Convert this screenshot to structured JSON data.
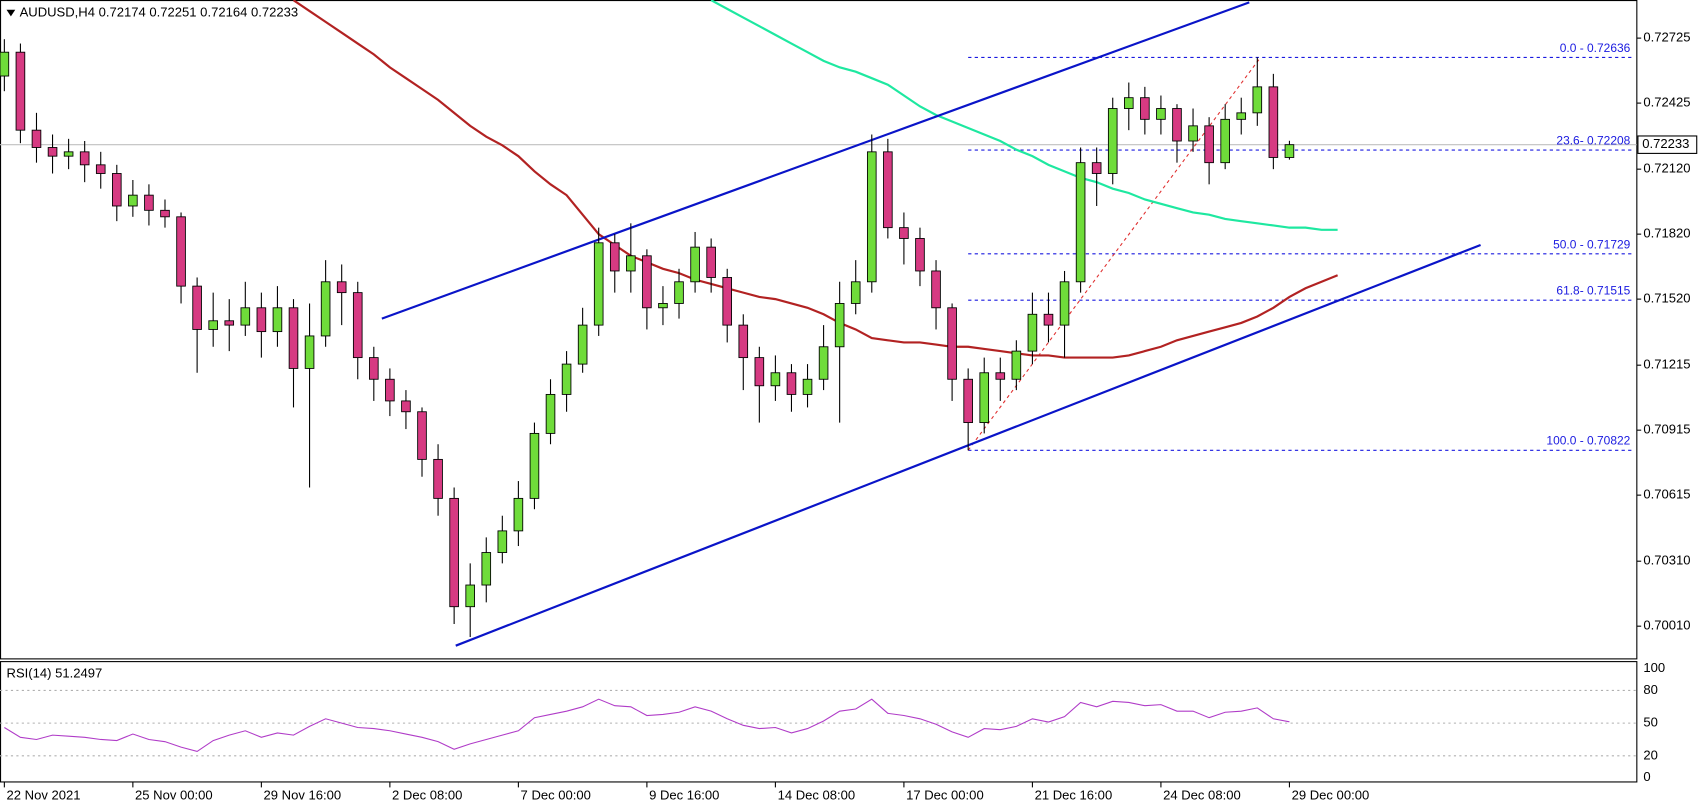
{
  "chart_data": [
    {
      "type": "candlestick",
      "title": "AUDUSD,H4  0.72174 0.72251 0.72164 0.72233",
      "categories": [
        "22 Nov 2021",
        null,
        null,
        null,
        null,
        null,
        null,
        null,
        "25 Nov 00:00",
        null,
        null,
        null,
        null,
        null,
        null,
        null,
        "29 Nov 16:00",
        null,
        null,
        null,
        null,
        null,
        null,
        null,
        "2 Dec 08:00",
        null,
        null,
        null,
        null,
        null,
        null,
        null,
        "7 Dec 00:00",
        null,
        null,
        null,
        null,
        null,
        null,
        null,
        "9 Dec 16:00",
        null,
        null,
        null,
        null,
        null,
        null,
        null,
        "14 Dec 08:00",
        null,
        null,
        null,
        null,
        null,
        null,
        null,
        "17 Dec 00:00",
        null,
        null,
        null,
        null,
        null,
        null,
        null,
        "21 Dec 16:00",
        null,
        null,
        null,
        null,
        null,
        null,
        null,
        "24 Dec 08:00",
        null,
        null,
        null,
        null,
        null,
        null,
        null,
        "29 Dec 00:00",
        null,
        null,
        null
      ],
      "open": [
        0.7255,
        0.7266,
        0.723,
        0.7222,
        0.7218,
        0.722,
        0.7214,
        0.721,
        0.7195,
        0.72,
        0.7193,
        0.719,
        0.7158,
        0.7138,
        0.7142,
        0.714,
        0.7148,
        0.7137,
        0.7148,
        0.712,
        0.7135,
        0.716,
        0.7155,
        0.7125,
        0.7115,
        0.7105,
        0.71,
        0.7078,
        0.706,
        0.701,
        0.702,
        0.7035,
        0.7045,
        0.706,
        0.709,
        0.7108,
        0.7122,
        0.714,
        0.7178,
        0.7165,
        0.7172,
        0.7148,
        0.715,
        0.716,
        0.7176,
        0.7162,
        0.714,
        0.7125,
        0.7112,
        0.7118,
        0.7108,
        0.7115,
        0.713,
        0.715,
        0.716,
        0.722,
        0.7185,
        0.718,
        0.7165,
        0.7148,
        0.7115,
        0.7095,
        0.7118,
        0.7115,
        0.7128,
        0.7145,
        0.714,
        0.716,
        0.7215,
        0.721,
        0.724,
        0.7245,
        0.7235,
        0.724,
        0.7225,
        0.7232,
        0.7215,
        0.7235,
        0.7238,
        0.725,
        0.72174,
        null,
        null,
        null
      ],
      "high": [
        0.7272,
        0.727,
        0.7238,
        0.7228,
        0.7226,
        0.7225,
        0.722,
        0.7214,
        0.7207,
        0.7205,
        0.7198,
        0.7192,
        0.7162,
        0.7155,
        0.7152,
        0.716,
        0.7155,
        0.7158,
        0.7152,
        0.715,
        0.717,
        0.7168,
        0.716,
        0.713,
        0.712,
        0.711,
        0.7102,
        0.7085,
        0.7065,
        0.703,
        0.7042,
        0.7052,
        0.7068,
        0.7095,
        0.7115,
        0.7128,
        0.7148,
        0.7185,
        0.7182,
        0.7187,
        0.7175,
        0.7158,
        0.7166,
        0.7183,
        0.718,
        0.7166,
        0.7145,
        0.713,
        0.7126,
        0.7122,
        0.7122,
        0.714,
        0.716,
        0.717,
        0.7228,
        0.7226,
        0.7192,
        0.7185,
        0.717,
        0.715,
        0.712,
        0.7125,
        0.7125,
        0.7133,
        0.7155,
        0.7155,
        0.7165,
        0.7222,
        0.7222,
        0.7245,
        0.7252,
        0.725,
        0.7246,
        0.7242,
        0.724,
        0.7236,
        0.7242,
        0.7245,
        0.72636,
        0.7256,
        0.72251,
        null,
        null,
        null
      ],
      "low": [
        0.7248,
        0.7224,
        0.7215,
        0.721,
        0.7212,
        0.7206,
        0.7203,
        0.7188,
        0.719,
        0.7186,
        0.7185,
        0.715,
        0.7118,
        0.713,
        0.7128,
        0.7135,
        0.7125,
        0.713,
        0.7102,
        0.7065,
        0.713,
        0.714,
        0.7115,
        0.7105,
        0.7098,
        0.7092,
        0.707,
        0.7052,
        0.7002,
        0.6996,
        0.7012,
        0.703,
        0.7038,
        0.7055,
        0.7085,
        0.71,
        0.7118,
        0.7135,
        0.7155,
        0.7155,
        0.7138,
        0.714,
        0.7143,
        0.7155,
        0.7155,
        0.7132,
        0.711,
        0.7095,
        0.7105,
        0.71,
        0.7102,
        0.711,
        0.7095,
        0.7145,
        0.7155,
        0.718,
        0.7168,
        0.7158,
        0.7138,
        0.7105,
        0.70822,
        0.709,
        0.7105,
        0.711,
        0.7122,
        0.7132,
        0.7125,
        0.7155,
        0.7195,
        0.7205,
        0.723,
        0.7228,
        0.7228,
        0.7215,
        0.722,
        0.7205,
        0.7212,
        0.7228,
        0.7232,
        0.7212,
        0.72164,
        null,
        null,
        null
      ],
      "close": [
        0.7266,
        0.723,
        0.7222,
        0.7218,
        0.722,
        0.7214,
        0.721,
        0.7195,
        0.72,
        0.7193,
        0.719,
        0.7158,
        0.7138,
        0.7142,
        0.714,
        0.7148,
        0.7137,
        0.7148,
        0.712,
        0.7135,
        0.716,
        0.7155,
        0.7125,
        0.7115,
        0.7105,
        0.71,
        0.7078,
        0.706,
        0.701,
        0.702,
        0.7035,
        0.7045,
        0.706,
        0.709,
        0.7108,
        0.7122,
        0.714,
        0.7178,
        0.7165,
        0.7172,
        0.7148,
        0.715,
        0.716,
        0.7176,
        0.7162,
        0.714,
        0.7125,
        0.7112,
        0.7118,
        0.7108,
        0.7115,
        0.713,
        0.715,
        0.716,
        0.722,
        0.7185,
        0.718,
        0.7165,
        0.7148,
        0.7115,
        0.7095,
        0.7118,
        0.7115,
        0.7128,
        0.7145,
        0.714,
        0.716,
        0.7215,
        0.721,
        0.724,
        0.7245,
        0.7235,
        0.724,
        0.7225,
        0.7232,
        0.7215,
        0.7235,
        0.7238,
        0.725,
        0.72174,
        0.72233,
        null,
        null,
        null
      ],
      "colors": {
        "up": "#6fdc3a",
        "down": "#d63a82",
        "outline": "#000000"
      },
      "moving_averages": [
        {
          "color": "#b22222",
          "values": [
            null,
            null,
            null,
            null,
            null,
            null,
            null,
            null,
            null,
            null,
            null,
            null,
            null,
            null,
            null,
            null,
            null,
            null,
            0.729,
            0.7285,
            0.728,
            0.7275,
            0.727,
            0.7265,
            0.7259,
            0.7254,
            0.7249,
            0.7244,
            0.7238,
            0.7232,
            0.7227,
            0.7223,
            0.7218,
            0.7211,
            0.7205,
            0.72,
            0.7191,
            0.7182,
            0.7177,
            0.7172,
            0.7169,
            0.7166,
            0.7164,
            0.7161,
            0.7159,
            0.7157,
            0.7155,
            0.7153,
            0.7152,
            0.715,
            0.7148,
            0.7145,
            0.7141,
            0.7138,
            0.7134,
            0.7133,
            0.7132,
            0.7132,
            0.7131,
            0.713,
            0.713,
            0.7129,
            0.7128,
            0.7127,
            0.7126,
            0.7126,
            0.7125,
            0.7125,
            0.7125,
            0.7125,
            0.7126,
            0.7128,
            0.713,
            0.7133,
            0.7135,
            0.7137,
            0.7139,
            0.7141,
            0.7144,
            0.7148,
            0.7153,
            0.7157,
            0.716,
            0.7163
          ]
        },
        {
          "color": "#1ee8a0",
          "values": [
            null,
            null,
            null,
            null,
            null,
            null,
            null,
            null,
            null,
            null,
            null,
            null,
            null,
            null,
            null,
            null,
            null,
            null,
            null,
            null,
            null,
            null,
            null,
            null,
            null,
            null,
            null,
            null,
            null,
            null,
            null,
            null,
            null,
            null,
            null,
            null,
            null,
            null,
            null,
            null,
            null,
            null,
            null,
            null,
            0.729,
            0.7286,
            0.7282,
            0.7278,
            0.7274,
            0.727,
            0.7266,
            0.7262,
            0.7259,
            0.7257,
            0.7254,
            0.7251,
            0.7246,
            0.7241,
            0.7237,
            0.7234,
            0.7231,
            0.7228,
            0.7225,
            0.7221,
            0.7218,
            0.7214,
            0.7211,
            0.7208,
            0.7206,
            0.7203,
            0.7201,
            0.7198,
            0.7196,
            0.7194,
            0.7192,
            0.7191,
            0.7189,
            0.7188,
            0.7187,
            0.7186,
            0.7185,
            0.7185,
            0.7184,
            0.7184
          ]
        }
      ],
      "trendlines": [
        {
          "color": "#0a14c8",
          "x": [
            23.5,
            77.5
          ],
          "y": [
            0.7143,
            0.7289
          ]
        },
        {
          "color": "#0a14c8",
          "x": [
            28.1,
            91.9
          ],
          "y": [
            0.6992,
            0.7177
          ]
        }
      ],
      "fib_levels": [
        {
          "value": 0.72636,
          "label": "0.0 - 0.72636"
        },
        {
          "value": 0.72208,
          "label": "23.6- 0.72208"
        },
        {
          "value": 0.71729,
          "label": "50.0 - 0.71729"
        },
        {
          "value": 0.71515,
          "label": "61.8- 0.71515"
        },
        {
          "value": 0.70822,
          "label": "100.0 - 0.70822"
        }
      ],
      "fib_color": "#1a1ae0",
      "last_price": 0.72233,
      "ylim": [
        0.69859,
        0.72901
      ],
      "yticks": [
        0.72725,
        0.72425,
        {
          "value": 0.7212,
          "label": "0.72120"
        },
        {
          "value": 0.7182,
          "label": "0.71820"
        },
        {
          "value": 0.7152,
          "label": "0.71520"
        },
        0.71215,
        0.70915,
        0.70615,
        {
          "value": 0.7031,
          "label": "0.70310"
        },
        {
          "value": 0.7001,
          "label": "0.70010"
        }
      ]
    },
    {
      "type": "line",
      "title": "RSI(14) 51.2497",
      "color": "#b03cc8",
      "values": [
        46,
        37,
        35,
        39,
        38,
        37,
        35,
        34,
        40,
        35,
        33,
        28,
        24,
        34,
        39,
        43,
        37,
        41,
        39,
        47,
        54,
        50,
        46,
        45,
        43,
        40,
        37,
        33,
        26,
        31,
        35,
        39,
        43,
        55,
        58,
        61,
        65,
        72,
        66,
        65,
        57,
        58,
        60,
        65,
        61,
        54,
        48,
        45,
        46,
        41,
        45,
        52,
        61,
        63,
        72,
        59,
        57,
        54,
        49,
        42,
        37,
        45,
        44,
        47,
        54,
        51,
        56,
        69,
        65,
        70,
        69,
        66,
        67,
        61,
        61,
        55,
        60,
        61,
        64,
        54,
        51.2497,
        null,
        null,
        null
      ],
      "ylim": [
        0,
        100
      ],
      "yticks": [
        0,
        20,
        50,
        80,
        100
      ]
    }
  ]
}
